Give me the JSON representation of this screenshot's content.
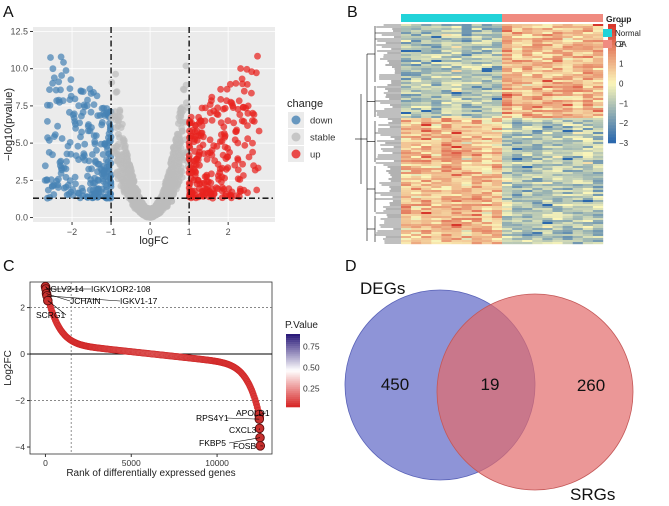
{
  "panel_labels": {
    "a": "A",
    "b": "B",
    "c": "C",
    "d": "D"
  },
  "chart_data": [
    {
      "type": "scatter",
      "panel": "A",
      "title": "",
      "xlabel": "logFC",
      "ylabel": "−log10(pvalue)",
      "xlim": [
        -3.0,
        3.2
      ],
      "ylim": [
        -0.3,
        12.8
      ],
      "x_ticks": [
        -2,
        -1,
        0,
        1,
        2
      ],
      "x_tick_labels": [
        "−2",
        "−1",
        "0",
        "1",
        "2"
      ],
      "y_ticks": [
        0,
        2.5,
        5,
        7.5,
        10,
        12.5
      ],
      "y_tick_labels": [
        "0.0",
        "2.5",
        "5.0",
        "7.5",
        "10.0",
        "12.5"
      ],
      "thresholds": {
        "logfc": [
          -1,
          1
        ],
        "neglog10p": 1.3
      },
      "legend": {
        "title": "change",
        "entries": [
          {
            "label": "down",
            "color": "#4682b4"
          },
          {
            "label": "stable",
            "color": "#bdbdbd"
          },
          {
            "label": "up",
            "color": "#e8221f"
          }
        ]
      },
      "series": [
        {
          "name": "down",
          "count": 240,
          "x_range": [
            -2.7,
            -1.0
          ],
          "y_range": [
            1.3,
            12.0
          ]
        },
        {
          "name": "stable",
          "count": 1400,
          "x_range": [
            -1.0,
            1.0
          ],
          "y_range": [
            0.0,
            12.3
          ]
        },
        {
          "name": "up",
          "count": 240,
          "x_range": [
            1.0,
            2.8
          ],
          "y_range": [
            1.3,
            11.0
          ]
        }
      ]
    },
    {
      "type": "heatmap",
      "panel": "B",
      "title": "",
      "legend": {
        "title": "Group",
        "entries": [
          {
            "label": "Normal",
            "color": "#22d3d9"
          },
          {
            "label": "OA",
            "color": "#f08b80"
          }
        ]
      },
      "color_scale": {
        "min": -3,
        "max": 3,
        "ticks": [
          -3,
          -2,
          -1,
          0,
          1,
          2,
          3
        ],
        "tick_labels": [
          "−3",
          "−2",
          "−1",
          "0",
          "1",
          "2",
          "3"
        ],
        "colors": [
          "#2b68ad",
          "#fbf6b9",
          "#d7372c"
        ]
      },
      "groups": [
        {
          "name": "Normal",
          "n_samples": 10
        },
        {
          "name": "OA",
          "n_samples": 10
        }
      ],
      "n_genes": 469
    },
    {
      "type": "scatter",
      "panel": "C",
      "title": "",
      "xlabel": "Rank of differentially expressed genes",
      "ylabel": "Log2FC",
      "xlim": [
        -900,
        13200
      ],
      "ylim": [
        -4.3,
        3.1
      ],
      "x_ticks": [
        0,
        5000,
        10000
      ],
      "x_tick_labels": [
        "0",
        "5000",
        "10000"
      ],
      "y_ticks": [
        -4,
        -2,
        0,
        2
      ],
      "y_tick_labels": [
        "−4",
        "−2",
        "0",
        "2"
      ],
      "thresholds": {
        "log2fc": [
          -2,
          2
        ],
        "rank": 1500
      },
      "color_scale": {
        "title": "P.Value",
        "ticks": [
          0.25,
          0.5,
          0.75
        ],
        "tick_labels": [
          "0.25",
          "0.50",
          "0.75"
        ],
        "colors": [
          "#d82a2a",
          "#ffffff",
          "#2b1b7a"
        ]
      },
      "labeled_genes": [
        {
          "gene": "IGLV2-14",
          "rank": 5,
          "log2fc": 2.9
        },
        {
          "gene": "IGKV1OR2-108",
          "rank": 30,
          "log2fc": 2.8
        },
        {
          "gene": "JCHAIN",
          "rank": 60,
          "log2fc": 2.6
        },
        {
          "gene": "IGKV1-17",
          "rank": 90,
          "log2fc": 2.5
        },
        {
          "gene": "SCRG1",
          "rank": 140,
          "log2fc": 2.3
        },
        {
          "gene": "APOLD1",
          "rank": 12440,
          "log2fc": -2.6
        },
        {
          "gene": "RPS4Y1",
          "rank": 12460,
          "log2fc": -2.8
        },
        {
          "gene": "CXCL3",
          "rank": 12480,
          "log2fc": -3.2
        },
        {
          "gene": "FKBP5",
          "rank": 12500,
          "log2fc": -3.6
        },
        {
          "gene": "FOSB",
          "rank": 12520,
          "log2fc": -3.95
        }
      ],
      "n_genes": 12540
    },
    {
      "type": "venn",
      "panel": "D",
      "title": "",
      "sets": [
        {
          "name": "DEGs",
          "only": 450,
          "color": "#6e76cc"
        },
        {
          "name": "SRGs",
          "only": 260,
          "color": "#e36b6b"
        }
      ],
      "intersection": 19
    }
  ]
}
